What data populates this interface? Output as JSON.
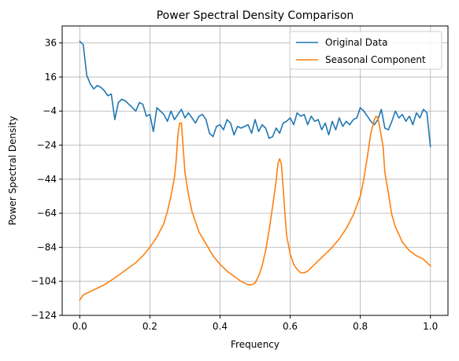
{
  "chart_data": {
    "type": "line",
    "title": "Power Spectral Density Comparison",
    "xlabel": "Frequency",
    "ylabel": "Power Spectral Density",
    "xlim": [
      -0.05,
      1.05
    ],
    "ylim": [
      -124,
      46
    ],
    "xticks": [
      0.0,
      0.2,
      0.4,
      0.6,
      0.8,
      1.0
    ],
    "xtick_labels": [
      "0.0",
      "0.2",
      "0.4",
      "0.6",
      "0.8",
      "1.0"
    ],
    "yticks": [
      36,
      16,
      -4,
      -24,
      -44,
      -64,
      -84,
      -104,
      -124
    ],
    "ytick_labels": [
      "36",
      "16",
      "−4",
      "−24",
      "−44",
      "−64",
      "−84",
      "−104",
      "−124"
    ],
    "grid": true,
    "legend_position": "top-right",
    "series": [
      {
        "name": "Original Data",
        "color": "#1f77b4",
        "x": [
          0.0,
          0.01,
          0.02,
          0.03,
          0.04,
          0.05,
          0.06,
          0.07,
          0.08,
          0.09,
          0.1,
          0.11,
          0.12,
          0.13,
          0.14,
          0.15,
          0.16,
          0.17,
          0.18,
          0.19,
          0.2,
          0.21,
          0.22,
          0.23,
          0.24,
          0.25,
          0.26,
          0.27,
          0.28,
          0.29,
          0.3,
          0.31,
          0.32,
          0.33,
          0.34,
          0.35,
          0.36,
          0.37,
          0.38,
          0.39,
          0.4,
          0.41,
          0.42,
          0.43,
          0.44,
          0.45,
          0.46,
          0.47,
          0.48,
          0.49,
          0.5,
          0.51,
          0.52,
          0.53,
          0.54,
          0.55,
          0.56,
          0.57,
          0.58,
          0.59,
          0.6,
          0.61,
          0.62,
          0.63,
          0.64,
          0.65,
          0.66,
          0.67,
          0.68,
          0.69,
          0.7,
          0.71,
          0.72,
          0.73,
          0.74,
          0.75,
          0.76,
          0.77,
          0.78,
          0.79,
          0.8,
          0.81,
          0.82,
          0.83,
          0.84,
          0.85,
          0.86,
          0.87,
          0.88,
          0.89,
          0.9,
          0.91,
          0.92,
          0.93,
          0.94,
          0.95,
          0.96,
          0.97,
          0.98,
          0.99,
          1.0
        ],
        "y": [
          37,
          35,
          17,
          12,
          9,
          11,
          10,
          8,
          5,
          6,
          -9,
          1,
          3,
          2,
          0,
          -2,
          -4,
          1,
          0,
          -7,
          -6,
          -16,
          -2,
          -4,
          -6,
          -10,
          -4,
          -9,
          -6,
          -3,
          -8,
          -5,
          -8,
          -11,
          -7,
          -6,
          -9,
          -17,
          -19,
          -13,
          -12,
          -15,
          -9,
          -11,
          -18,
          -13,
          -14,
          -13,
          -12,
          -17,
          -9,
          -16,
          -12,
          -14,
          -20,
          -19,
          -14,
          -17,
          -11,
          -10,
          -8,
          -12,
          -5,
          -7,
          -6,
          -12,
          -7,
          -10,
          -9,
          -15,
          -11,
          -18,
          -10,
          -15,
          -8,
          -13,
          -10,
          -12,
          -9,
          -8,
          -2,
          -4,
          -7,
          -10,
          -12,
          -9,
          -3,
          -14,
          -15,
          -10,
          -4,
          -8,
          -6,
          -10,
          -7,
          -12,
          -5,
          -8,
          -3,
          -5,
          -25
        ]
      },
      {
        "name": "Seasonal Component",
        "color": "#ff7f0e",
        "x": [
          0.0,
          0.01,
          0.02,
          0.03,
          0.05,
          0.07,
          0.1,
          0.12,
          0.14,
          0.16,
          0.18,
          0.2,
          0.22,
          0.24,
          0.25,
          0.26,
          0.27,
          0.275,
          0.28,
          0.285,
          0.29,
          0.3,
          0.31,
          0.32,
          0.34,
          0.36,
          0.38,
          0.4,
          0.42,
          0.44,
          0.46,
          0.48,
          0.49,
          0.5,
          0.51,
          0.52,
          0.53,
          0.54,
          0.55,
          0.56,
          0.565,
          0.57,
          0.575,
          0.58,
          0.585,
          0.59,
          0.6,
          0.61,
          0.62,
          0.63,
          0.64,
          0.65,
          0.66,
          0.67,
          0.68,
          0.7,
          0.72,
          0.74,
          0.76,
          0.78,
          0.8,
          0.81,
          0.82,
          0.83,
          0.84,
          0.845,
          0.85,
          0.855,
          0.86,
          0.865,
          0.87,
          0.88,
          0.89,
          0.9,
          0.92,
          0.94,
          0.96,
          0.98,
          0.99,
          1.0
        ],
        "y": [
          -115,
          -112,
          -111,
          -110,
          -108,
          -106,
          -102,
          -99,
          -96,
          -93,
          -89,
          -84,
          -78,
          -70,
          -63,
          -54,
          -43,
          -33,
          -18,
          -11,
          -11,
          -40,
          -53,
          -63,
          -75,
          -82,
          -89,
          -94,
          -98,
          -101,
          -104,
          -106,
          -106,
          -105,
          -101,
          -95,
          -86,
          -74,
          -60,
          -45,
          -35,
          -32,
          -35,
          -49,
          -64,
          -77,
          -88,
          -94,
          -97,
          -99,
          -99,
          -98,
          -96,
          -94,
          -92,
          -88,
          -84,
          -79,
          -73,
          -65,
          -54,
          -44,
          -31,
          -17,
          -9,
          -7,
          -8,
          -13,
          -19,
          -25,
          -40,
          -52,
          -65,
          -72,
          -81,
          -86,
          -89,
          -91,
          -93,
          -95
        ]
      }
    ]
  }
}
